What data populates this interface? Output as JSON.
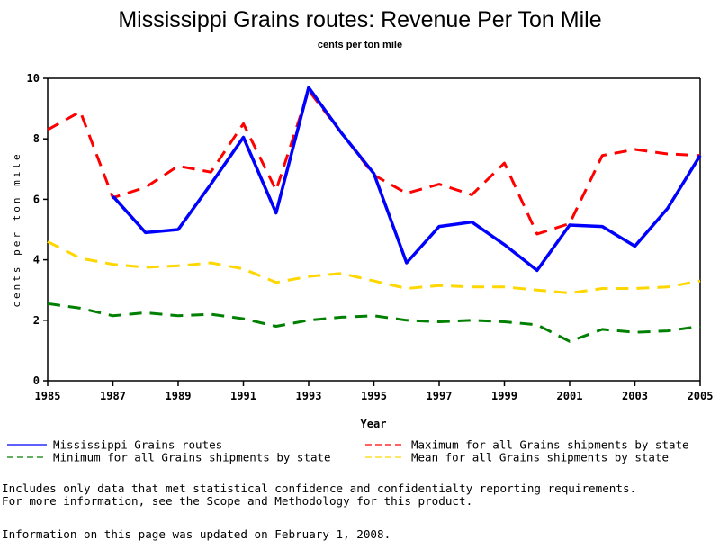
{
  "chart_data": {
    "type": "line",
    "title": "Mississippi Grains routes: Revenue Per Ton Mile",
    "subtitle": "cents per ton mile",
    "xlabel": "Year",
    "ylabel": "cents per ton mile",
    "xlim": [
      1985,
      2005
    ],
    "ylim": [
      0,
      10
    ],
    "x_ticks": [
      "1985",
      "1987",
      "1989",
      "1991",
      "1993",
      "1995",
      "1997",
      "1999",
      "2001",
      "2003",
      "2005"
    ],
    "y_ticks": [
      "0",
      "2",
      "4",
      "6",
      "8",
      "10"
    ],
    "grid": false,
    "legend_position": "bottom",
    "x": [
      1985,
      1986,
      1987,
      1988,
      1989,
      1990,
      1991,
      1992,
      1993,
      1994,
      1995,
      1996,
      1997,
      1998,
      1999,
      2000,
      2001,
      2002,
      2003,
      2004,
      2005
    ],
    "series": [
      {
        "name": "Mississippi Grains routes",
        "color": "#0000ff",
        "style": "solid",
        "values": [
          null,
          null,
          6.1,
          4.9,
          5.0,
          6.5,
          8.05,
          5.55,
          9.7,
          8.2,
          6.85,
          3.9,
          5.1,
          5.25,
          4.5,
          3.65,
          5.15,
          5.1,
          4.45,
          5.7,
          7.45
        ]
      },
      {
        "name": "Maximum for all Grains shipments by state",
        "color": "#ff0000",
        "style": "dashed",
        "values": [
          8.3,
          8.9,
          6.05,
          6.4,
          7.1,
          6.9,
          8.5,
          6.3,
          9.6,
          8.2,
          6.8,
          6.2,
          6.5,
          6.15,
          7.2,
          4.85,
          5.2,
          7.45,
          7.65,
          7.5,
          7.45
        ]
      },
      {
        "name": "Minimum for all Grains shipments by state",
        "color": "#008000",
        "style": "dashed",
        "values": [
          2.55,
          2.4,
          2.15,
          2.25,
          2.15,
          2.2,
          2.05,
          1.8,
          2.0,
          2.1,
          2.15,
          2.0,
          1.95,
          2.0,
          1.95,
          1.85,
          1.3,
          1.7,
          1.6,
          1.65,
          1.8
        ]
      },
      {
        "name": "Mean for all Grains shipments by state",
        "color": "#ffd700",
        "style": "dashed",
        "values": [
          4.6,
          4.05,
          3.85,
          3.75,
          3.8,
          3.9,
          3.7,
          3.25,
          3.45,
          3.55,
          3.3,
          3.05,
          3.15,
          3.1,
          3.1,
          3.0,
          2.9,
          3.05,
          3.05,
          3.1,
          3.3
        ]
      }
    ]
  },
  "notes": {
    "line1": "Includes only data that met statistical confidence and confidentialty reporting requirements.",
    "line2": "For more information, see the Scope and Methodology for this product.",
    "updated": "Information on this page was updated on February 1, 2008."
  }
}
